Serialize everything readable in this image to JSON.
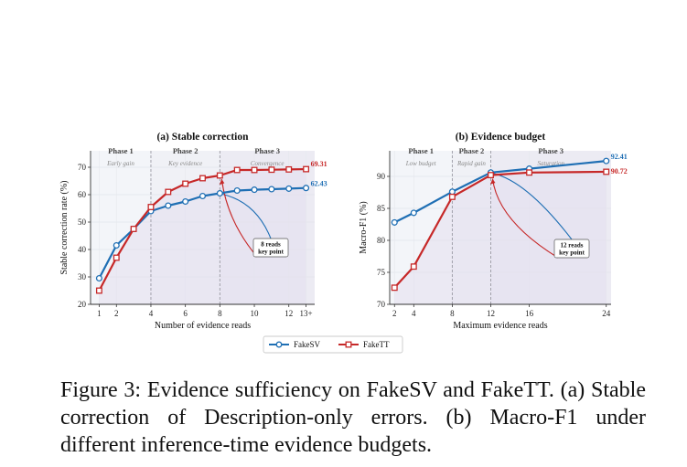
{
  "caption": {
    "label": "Figure 3:",
    "text": "Evidence sufficiency on FakeSV and FakeTT. (a) Stable correction of Description-only errors. (b) Macro-F1 under different inference-time evidence budgets."
  },
  "legend": [
    {
      "name": "FakeSV",
      "color": "#1f6fb4",
      "marker": "circle"
    },
    {
      "name": "FakeTT",
      "color": "#c62828",
      "marker": "square"
    }
  ],
  "chart_data": [
    {
      "type": "line",
      "title": "(a) Stable correction",
      "xlabel": "Number of evidence reads",
      "ylabel": "Stable correction rate (%)",
      "x_ticks": [
        "1",
        "2",
        "4",
        "6",
        "8",
        "10",
        "12",
        "13+"
      ],
      "y_ticks": [
        "20",
        "30",
        "40",
        "50",
        "60",
        "70"
      ],
      "xlim": [
        0.5,
        13.5
      ],
      "ylim": [
        20,
        76
      ],
      "grid": true,
      "phases": [
        {
          "name": "Phase 1",
          "subtitle": "Early gain",
          "from": 0.5,
          "to": 4
        },
        {
          "name": "Phase 2",
          "subtitle": "Key evidence",
          "from": 4,
          "to": 8
        },
        {
          "name": "Phase 3",
          "subtitle": "Convergence",
          "from": 8,
          "to": 13.5
        }
      ],
      "phase_dividers": [
        4,
        8
      ],
      "series": [
        {
          "name": "FakeSV",
          "x": [
            1,
            2,
            3,
            4,
            5,
            6,
            7,
            8,
            9,
            10,
            11,
            12,
            13
          ],
          "y": [
            29.5,
            41.5,
            47.5,
            54.0,
            56.0,
            57.5,
            59.5,
            60.5,
            61.5,
            61.8,
            62.0,
            62.2,
            62.43
          ]
        },
        {
          "name": "FakeTT",
          "x": [
            1,
            2,
            3,
            4,
            5,
            6,
            7,
            8,
            9,
            10,
            11,
            12,
            13
          ],
          "y": [
            25.0,
            37.0,
            47.5,
            55.5,
            61.0,
            64.0,
            66.0,
            67.0,
            69.0,
            69.0,
            69.1,
            69.2,
            69.31
          ]
        }
      ],
      "end_labels": [
        "62.43",
        "69.31"
      ],
      "annotation": {
        "text": [
          "8 reads",
          "key point"
        ],
        "x": 8
      }
    },
    {
      "type": "line",
      "title": "(b) Evidence budget",
      "xlabel": "Maximum evidence reads",
      "ylabel": "Macro-F1 (%)",
      "x_ticks": [
        "2",
        "4",
        "8",
        "12",
        "16",
        "24"
      ],
      "y_ticks": [
        "70",
        "75",
        "80",
        "85",
        "90"
      ],
      "xlim": [
        1.5,
        24.5
      ],
      "ylim": [
        70,
        94
      ],
      "grid": true,
      "phases": [
        {
          "name": "Phase 1",
          "subtitle": "Low budget",
          "from": 1.5,
          "to": 8
        },
        {
          "name": "Phase 2",
          "subtitle": "Rapid gain",
          "from": 8,
          "to": 12
        },
        {
          "name": "Phase 3",
          "subtitle": "Saturation",
          "from": 12,
          "to": 24.5
        }
      ],
      "phase_dividers": [
        8,
        12
      ],
      "series": [
        {
          "name": "FakeSV",
          "x": [
            2,
            4,
            8,
            12,
            16,
            24
          ],
          "y": [
            82.8,
            84.3,
            87.6,
            90.6,
            91.2,
            92.41
          ]
        },
        {
          "name": "FakeTT",
          "x": [
            2,
            4,
            8,
            12,
            16,
            24
          ],
          "y": [
            72.6,
            75.9,
            86.8,
            90.2,
            90.6,
            90.72
          ]
        }
      ],
      "end_labels": [
        "92.41",
        "90.72"
      ],
      "annotation": {
        "text": [
          "12 reads",
          "key point"
        ],
        "x": 12
      }
    }
  ]
}
